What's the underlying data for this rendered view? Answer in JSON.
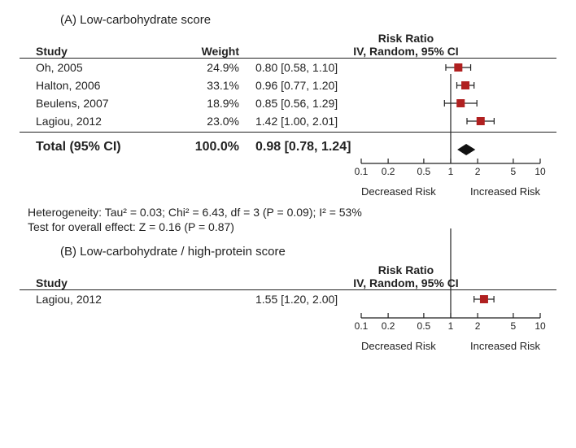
{
  "plot": {
    "xmin": 0.1,
    "xmax": 10,
    "ticks": [
      0.1,
      0.2,
      0.5,
      1,
      2,
      5,
      10
    ],
    "ref": 1,
    "axis_left_label": "Decreased Risk",
    "axis_right_label": "Increased Risk",
    "colors": {
      "marker": "#b02020",
      "line": "#222222",
      "diamond": "#111111",
      "bg": "#ffffff"
    },
    "marker_size": 10,
    "diamond_w": 22,
    "diamond_h": 14
  },
  "panelA": {
    "title": "(A) Low-carbohydrate score",
    "col_study": "Study",
    "col_weight": "Weight",
    "rr_header_top": "Risk Ratio",
    "rr_header_bot": "IV, Random, 95% CI",
    "rows": [
      {
        "study": "Oh, 2005",
        "weight": "24.9%",
        "rr_text": "0.80 [0.58, 1.10]",
        "est": 0.8,
        "lo": 0.58,
        "hi": 1.1
      },
      {
        "study": "Halton, 2006",
        "weight": "33.1%",
        "rr_text": "0.96 [0.77, 1.20]",
        "est": 0.96,
        "lo": 0.77,
        "hi": 1.2
      },
      {
        "study": "Beulens, 2007",
        "weight": "18.9%",
        "rr_text": "0.85 [0.56, 1.29]",
        "est": 0.85,
        "lo": 0.56,
        "hi": 1.29
      },
      {
        "study": "Lagiou, 2012",
        "weight": "23.0%",
        "rr_text": "1.42 [1.00, 2.01]",
        "est": 1.42,
        "lo": 1.0,
        "hi": 2.01
      }
    ],
    "total": {
      "label": "Total (95% CI)",
      "weight": "100.0%",
      "rr_text": "0.98 [0.78, 1.24]",
      "est": 0.98,
      "lo": 0.78,
      "hi": 1.24
    },
    "het_line": "Heterogeneity: Tau² = 0.03; Chi² = 6.43, df = 3 (P = 0.09); I² = 53%",
    "eff_line": "Test for overall effect: Z = 0.16 (P = 0.87)"
  },
  "panelB": {
    "title": "(B) Low-carbohydrate / high-protein score",
    "col_study": "Study",
    "rr_header_top": "Risk Ratio",
    "rr_header_bot": "IV, Random, 95% CI",
    "rows": [
      {
        "study": "Lagiou, 2012",
        "rr_text": "1.55 [1.20, 2.00]",
        "est": 1.55,
        "lo": 1.2,
        "hi": 2.0
      }
    ]
  }
}
